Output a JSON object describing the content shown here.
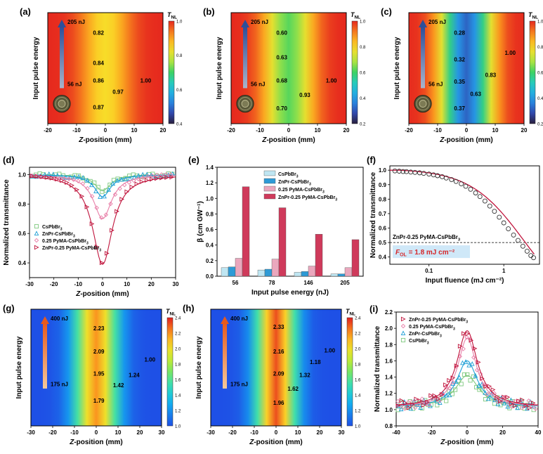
{
  "chart_data": [
    {
      "panel": "(a)",
      "type": "heatmap",
      "xlabel": "Z-position (mm)",
      "ylabel": "Input pulse energy",
      "xlim": [
        -20,
        20
      ],
      "xticks": [
        "-20",
        "-10",
        "0",
        "10",
        "20"
      ],
      "colorbar": {
        "label": "T",
        "sub": "NL",
        "min": 0.4,
        "max": 1.0,
        "ticks": [
          "1.0",
          "0.8",
          "0.6",
          "0.4"
        ]
      },
      "energy_top": "205 nJ",
      "energy_bottom": "56 nJ",
      "annotations": [
        "0.82",
        "0.84",
        "0.86",
        "0.97",
        "1.00",
        "0.87"
      ]
    },
    {
      "panel": "(b)",
      "type": "heatmap",
      "xlabel": "Z-position (mm)",
      "ylabel": "Input pulse energy",
      "xlim": [
        -20,
        20
      ],
      "xticks": [
        "-20",
        "-10",
        "0",
        "10",
        "20"
      ],
      "colorbar": {
        "label": "T",
        "sub": "NL",
        "min": 0.2,
        "max": 1.0,
        "ticks": [
          "1.0",
          "0.8",
          "0.6",
          "0.4",
          "0.2"
        ]
      },
      "energy_top": "205 nJ",
      "energy_bottom": "56 nJ",
      "annotations": [
        "0.60",
        "0.63",
        "0.68",
        "0.93",
        "1.00",
        "0.70"
      ]
    },
    {
      "panel": "(c)",
      "type": "heatmap",
      "xlabel": "Z-position (mm)",
      "ylabel": "Input pulse energy",
      "xlim": [
        -20,
        20
      ],
      "xticks": [
        "-20",
        "-10",
        "0",
        "10",
        "20"
      ],
      "colorbar": {
        "label": "T",
        "sub": "NL",
        "min": 0.2,
        "max": 1.0,
        "ticks": [
          "1.0",
          "0.8",
          "0.6",
          "0.4",
          "0.2"
        ]
      },
      "energy_top": "205 nJ",
      "energy_bottom": "56 nJ",
      "annotations": [
        "0.28",
        "0.32",
        "0.35",
        "1.00",
        "0.83",
        "0.63",
        "0.37"
      ]
    },
    {
      "panel": "(d)",
      "type": "scatter",
      "xlabel": "Z-position (mm)",
      "ylabel": "Normalized transmittance",
      "xlim": [
        -30,
        30
      ],
      "ylim": [
        0.3,
        1.05
      ],
      "xticks": [
        "-30",
        "-20",
        "-10",
        "0",
        "10",
        "20",
        "30"
      ],
      "yticks": [
        "0.4",
        "0.6",
        "0.8",
        "1.0"
      ],
      "series": [
        {
          "name": "CsPbBr",
          "sub": "3",
          "marker": "square",
          "color": "#7fc97f",
          "min_t": 0.89,
          "width_mm": 4.0
        },
        {
          "name": "ZnPr-CsPbBr",
          "sub": "3",
          "marker": "triangle",
          "color": "#1f9fd6",
          "min_t": 0.85,
          "width_mm": 4.0
        },
        {
          "name": "0.25 PyMA-CsPbBr",
          "sub": "3",
          "marker": "diamond",
          "color": "#e87fa8",
          "min_t": 0.7,
          "width_mm": 4.5
        },
        {
          "name": "ZnPr-0.25 PyMA-CsPbBr",
          "sub": "3",
          "marker": "triangle-right",
          "color": "#c0143c",
          "min_t": 0.39,
          "width_mm": 5.0
        }
      ]
    },
    {
      "panel": "(e)",
      "type": "bar",
      "xlabel": "Input pulse energy (nJ)",
      "ylabel": "β (cm GW⁻¹)",
      "ylim": [
        0,
        1.4
      ],
      "yticks": [
        "0.0",
        "0.2",
        "0.4",
        "0.6",
        "0.8",
        "1.0",
        "1.2",
        "1.4"
      ],
      "categories": [
        "56",
        "78",
        "146",
        "205"
      ],
      "series": [
        {
          "name": "CsPbBr",
          "sub": "3",
          "color": "#bfe6f2",
          "values": [
            0.11,
            0.08,
            0.05,
            0.03
          ]
        },
        {
          "name": "ZnPr-CsPbBr",
          "sub": "3",
          "color": "#2d9ad6",
          "values": [
            0.12,
            0.09,
            0.06,
            0.03
          ]
        },
        {
          "name": "0.25 PyMA-CsPbBr",
          "sub": "3",
          "color": "#eaa7bd",
          "values": [
            0.23,
            0.22,
            0.13,
            0.11
          ]
        },
        {
          "name": "ZnPr-0.25 PyMA-CsPbBr",
          "sub": "3",
          "color": "#cf3a5b",
          "values": [
            1.15,
            0.88,
            0.54,
            0.47
          ]
        }
      ]
    },
    {
      "panel": "(f)",
      "type": "scatter",
      "xlabel": "Input fluence (mJ cm⁻²)",
      "ylabel": "Normalized transmittance",
      "xscale": "log",
      "xlim": [
        0.03,
        3.0
      ],
      "ylim": [
        0.35,
        1.03
      ],
      "xticks": [
        "0.1",
        "1"
      ],
      "yticks": [
        "0.4",
        "0.5",
        "0.6",
        "0.7",
        "0.8",
        "0.9",
        "1.0"
      ],
      "label": "ZnPr-0.25 PyMA-CsPbBr",
      "label_sub": "3",
      "threshold": 0.5,
      "fol_prefix": "F",
      "fol_sub": "OL",
      "fol_text": " = 1.8 mJ cm⁻²",
      "x": [
        0.035,
        0.04,
        0.045,
        0.05,
        0.057,
        0.065,
        0.075,
        0.085,
        0.1,
        0.115,
        0.13,
        0.15,
        0.17,
        0.2,
        0.23,
        0.27,
        0.31,
        0.36,
        0.42,
        0.48,
        0.56,
        0.65,
        0.75,
        0.87,
        1.0,
        1.15,
        1.35,
        1.55,
        1.8,
        2.05,
        2.3,
        2.5
      ],
      "y": [
        0.995,
        0.993,
        0.991,
        0.99,
        0.987,
        0.985,
        0.982,
        0.978,
        0.973,
        0.968,
        0.962,
        0.955,
        0.946,
        0.935,
        0.922,
        0.906,
        0.889,
        0.868,
        0.843,
        0.818,
        0.787,
        0.752,
        0.716,
        0.675,
        0.636,
        0.595,
        0.552,
        0.515,
        0.475,
        0.44,
        0.41,
        0.395
      ]
    },
    {
      "panel": "(g)",
      "type": "heatmap",
      "xlabel": "Z-position (mm)",
      "ylabel": "Input pulse energy",
      "xlim": [
        -30,
        30
      ],
      "xticks": [
        "-30",
        "-20",
        "-10",
        "0",
        "10",
        "20",
        "30"
      ],
      "colorbar": {
        "label": "T",
        "sub": "NL",
        "min": 1.0,
        "max": 2.4,
        "ticks": [
          "2.4",
          "2.2",
          "2.0",
          "1.8",
          "1.6",
          "1.4",
          "1.2",
          "1.0"
        ]
      },
      "energy_top": "400 nJ",
      "energy_bottom": "175 nJ",
      "annotations": [
        "2.23",
        "2.09",
        "1.00",
        "1.95",
        "1.24",
        "1.42",
        "1.79"
      ]
    },
    {
      "panel": "(h)",
      "type": "heatmap",
      "xlabel": "Z-position (mm)",
      "ylabel": "Input pulse energy",
      "xlim": [
        -30,
        30
      ],
      "xticks": [
        "-30",
        "-20",
        "-10",
        "0",
        "10",
        "20",
        "30"
      ],
      "colorbar": {
        "label": "T",
        "sub": "NL",
        "min": 1.0,
        "max": 2.4,
        "ticks": [
          "2.4",
          "2.2",
          "2.0",
          "1.8",
          "1.6",
          "1.4",
          "1.2",
          "1.0"
        ]
      },
      "energy_top": "400 nJ",
      "energy_bottom": "175 nJ",
      "annotations": [
        "2.33",
        "2.16",
        "1.00",
        "1.18",
        "2.09",
        "1.32",
        "1.62",
        "1.96"
      ]
    },
    {
      "panel": "(i)",
      "type": "scatter",
      "xlabel": "Z-position (mm)",
      "ylabel": "Normalized transmittance",
      "xlim": [
        -40,
        40
      ],
      "ylim": [
        0.8,
        2.2
      ],
      "xticks": [
        "-40",
        "-20",
        "0",
        "20",
        "40"
      ],
      "yticks": [
        "0.8",
        "1.0",
        "1.2",
        "1.4",
        "1.6",
        "1.8",
        "2.0",
        "2.2"
      ],
      "series": [
        {
          "name": "ZnPr-0.25 PyMA-CsPbBr",
          "sub": "3",
          "marker": "triangle-right",
          "color": "#c0143c",
          "peak": 1.97,
          "width_mm": 7.0
        },
        {
          "name": "0.25 PyMA-CsPbBr",
          "sub": "3",
          "marker": "diamond",
          "color": "#e87fa8",
          "peak": 1.88,
          "width_mm": 6.5
        },
        {
          "name": "ZnPr-CsPbBr",
          "sub": "3",
          "marker": "triangle",
          "color": "#1f9fd6",
          "peak": 1.6,
          "width_mm": 7.0
        },
        {
          "name": "CsPbBr",
          "sub": "3",
          "marker": "square",
          "color": "#7fc97f",
          "peak": 1.42,
          "width_mm": 8.0
        }
      ]
    }
  ]
}
